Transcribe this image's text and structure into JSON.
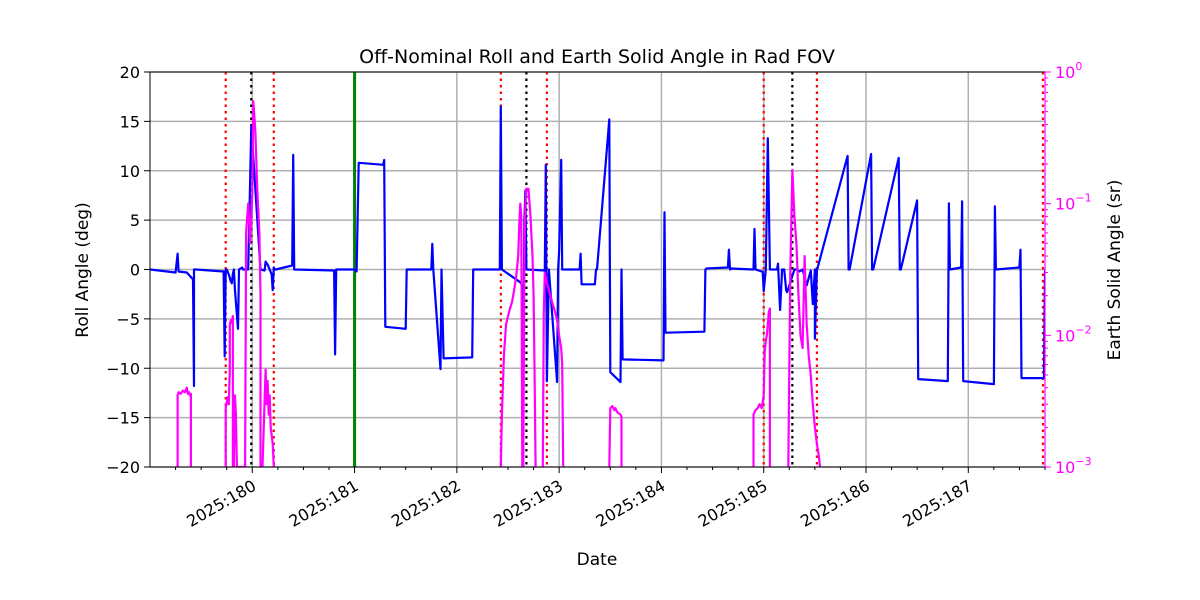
{
  "chart_data": {
    "type": "line",
    "title": "Off-Nominal Roll and Earth Solid Angle in Rad FOV",
    "xlabel": "Date",
    "ylabel": "Roll Angle (deg)",
    "ylabel_right": "Earth Solid Angle (sr)",
    "xlim": [
      179.0,
      187.75
    ],
    "ylim": [
      -20,
      20
    ],
    "ylim_right": [
      0.001,
      1
    ],
    "yscale_right": "log",
    "grid": true,
    "colors": {
      "roll": "#0000ff",
      "solid_angle": "#ff00ff",
      "red_lines": "#ff0000",
      "black_lines": "#000000",
      "green_line": "#008000",
      "right_axis": "#ff00ff"
    },
    "x_ticks": [
      {
        "value": 180,
        "label": "2025:180"
      },
      {
        "value": 181,
        "label": "2025:181"
      },
      {
        "value": 182,
        "label": "2025:182"
      },
      {
        "value": 183,
        "label": "2025:183"
      },
      {
        "value": 184,
        "label": "2025:184"
      },
      {
        "value": 185,
        "label": "2025:185"
      },
      {
        "value": 186,
        "label": "2025:186"
      },
      {
        "value": 187,
        "label": "2025:187"
      }
    ],
    "y_ticks": [
      {
        "value": 20,
        "label": "20"
      },
      {
        "value": 15,
        "label": "15"
      },
      {
        "value": 10,
        "label": "10"
      },
      {
        "value": 5,
        "label": "5"
      },
      {
        "value": 0,
        "label": "0"
      },
      {
        "value": -5,
        "label": "−5"
      },
      {
        "value": -10,
        "label": "−10"
      },
      {
        "value": -15,
        "label": "−15"
      },
      {
        "value": -20,
        "label": "−20"
      }
    ],
    "y_right_ticks": [
      {
        "value": 1,
        "base": "10",
        "exp": "0"
      },
      {
        "value": 0.1,
        "base": "10",
        "exp": "−1"
      },
      {
        "value": 0.01,
        "base": "10",
        "exp": "−2"
      },
      {
        "value": 0.001,
        "base": "10",
        "exp": "−3"
      }
    ],
    "vertical_lines": {
      "red_dotted": [
        179.74,
        180.21,
        182.43,
        182.88,
        185.0,
        185.52,
        187.73
      ],
      "black_dotted": [
        179.99,
        182.68,
        185.28
      ],
      "green_solid": [
        181.0
      ]
    },
    "series": [
      {
        "name": "Roll Angle",
        "axis": "left",
        "x": [
          179.0,
          179.25,
          179.27,
          179.28,
          179.36,
          179.42,
          179.43,
          179.43,
          179.45,
          179.72,
          179.73,
          179.74,
          179.75,
          179.77,
          179.79,
          179.8,
          179.81,
          179.82,
          179.83,
          179.86,
          179.87,
          179.9,
          179.91,
          179.94,
          179.96,
          179.99,
          180.08,
          180.12,
          180.13,
          180.15,
          180.17,
          180.19,
          180.2,
          180.21,
          180.22,
          180.23,
          180.39,
          180.4,
          180.41,
          180.8,
          180.81,
          180.82,
          180.84,
          181.0,
          181.02,
          181.04,
          181.28,
          181.29,
          181.3,
          181.5,
          181.51,
          181.52,
          181.75,
          181.76,
          181.77,
          181.84,
          181.85,
          181.87,
          182.15,
          182.16,
          182.42,
          182.43,
          182.44,
          182.62,
          182.64,
          182.65,
          182.66,
          182.67,
          182.68,
          182.86,
          182.87,
          182.88,
          182.9,
          182.98,
          182.99,
          183.0,
          183.02,
          183.03,
          183.2,
          183.21,
          183.22,
          183.35,
          183.36,
          183.37,
          183.49,
          183.5,
          183.6,
          183.61,
          183.62,
          184.02,
          184.03,
          184.04,
          184.42,
          184.43,
          184.44,
          184.65,
          184.66,
          184.67,
          184.68,
          184.9,
          184.91,
          184.92,
          184.98,
          184.99,
          185.0,
          185.02,
          185.04,
          185.06,
          185.13,
          185.14,
          185.16,
          185.18,
          185.2,
          185.22,
          185.23,
          185.3,
          185.3,
          185.32,
          185.35,
          185.38,
          185.42,
          185.46,
          185.48,
          185.5,
          185.5,
          185.52,
          185.52,
          185.82,
          185.83,
          185.84,
          186.05,
          186.06,
          186.07,
          186.32,
          186.33,
          186.34,
          186.5,
          186.51,
          186.8,
          186.81,
          186.82,
          186.93,
          186.94,
          186.95,
          187.25,
          187.26,
          187.27,
          187.5,
          187.51,
          187.52,
          187.74,
          187.75
        ],
        "y": [
          0.0,
          -0.3,
          1.6,
          -0.2,
          -0.3,
          -1.0,
          -11.8,
          0.0,
          0.0,
          -0.2,
          -8.8,
          0.0,
          0.0,
          -0.5,
          -1.2,
          -1.4,
          -0.4,
          0.0,
          -2.0,
          -6.0,
          0.0,
          0.2,
          0.0,
          0.0,
          0.0,
          14.5,
          0.0,
          -0.1,
          0.8,
          0.5,
          0.0,
          -0.5,
          -2.1,
          0.2,
          0.0,
          0.0,
          0.4,
          11.6,
          0.0,
          -0.1,
          -8.6,
          0.0,
          0.0,
          0.0,
          -0.2,
          10.8,
          10.6,
          11.1,
          -5.8,
          -6.0,
          0.0,
          0.0,
          0.0,
          2.6,
          0.0,
          -10.1,
          0.0,
          -9.0,
          -8.9,
          0.0,
          0.0,
          16.5,
          0.0,
          -1.3,
          -1.6,
          -9.0,
          5.0,
          8.0,
          0.0,
          -0.1,
          10.6,
          -11.3,
          0.0,
          -11.4,
          0.0,
          1.8,
          11.1,
          0.0,
          0.0,
          1.6,
          -1.5,
          -1.5,
          0.0,
          0.0,
          15.2,
          -10.4,
          -11.4,
          0.0,
          -9.1,
          -9.2,
          5.8,
          -6.4,
          -6.3,
          0.0,
          0.1,
          0.2,
          2.0,
          0.0,
          0.1,
          0.0,
          4.1,
          0.0,
          -0.2,
          -0.2,
          -2.2,
          0.0,
          13.3,
          0.0,
          0.0,
          0.6,
          -4.1,
          0.0,
          0.0,
          -2.1,
          -2.3,
          0.0,
          0.0,
          0.0,
          -0.2,
          0.0,
          -1.6,
          -0.1,
          -3.5,
          0.0,
          -7.0,
          0.0,
          -0.1,
          11.5,
          0.0,
          0.0,
          11.7,
          0.0,
          0.0,
          11.3,
          0.0,
          0.0,
          7.0,
          -11.1,
          -11.3,
          6.7,
          0.0,
          0.2,
          6.9,
          -11.3,
          -11.6,
          6.4,
          0.0,
          0.2,
          2.0,
          -11.0,
          -11.0,
          0.0
        ]
      },
      {
        "name": "Earth Solid Angle",
        "axis": "right",
        "segments": [
          {
            "x": [
              179.27,
              179.27,
              179.28,
              179.3,
              179.32,
              179.34,
              179.36,
              179.37,
              179.38,
              179.39,
              179.4,
              179.4
            ],
            "y": [
              0.001,
              0.0035,
              0.0037,
              0.0036,
              0.0038,
              0.0037,
              0.004,
              0.0036,
              0.0037,
              0.0035,
              0.0036,
              0.001
            ]
          },
          {
            "x": [
              179.74,
              179.74,
              179.76,
              179.77,
              179.78,
              179.78,
              179.79,
              179.8,
              179.81,
              179.81,
              179.82,
              179.83,
              179.84,
              179.85,
              179.86,
              179.87,
              179.88,
              179.9,
              179.91,
              179.92,
              179.93,
              179.94,
              179.96,
              179.98,
              180.0,
              180.01,
              180.03,
              180.05,
              180.07,
              180.08,
              180.08
            ],
            "y": [
              0.001,
              0.0028,
              0.0034,
              0.003,
              0.0055,
              0.012,
              0.013,
              0.0125,
              0.014,
              0.001,
              0.001,
              0.0035,
              0.0025,
              0.001,
              0.001,
              0.001,
              0.001,
              0.001,
              0.001,
              0.001,
              0.001,
              0.06,
              0.1,
              0.05,
              0.12,
              0.6,
              0.35,
              0.12,
              0.06,
              0.02,
              0.001
            ]
          },
          {
            "x": [
              180.1,
              180.12,
              180.13,
              180.14,
              180.15,
              180.16,
              180.17,
              180.18,
              180.2,
              180.21
            ],
            "y": [
              0.001,
              0.0032,
              0.0055,
              0.003,
              0.0045,
              0.0025,
              0.0035,
              0.002,
              0.0015,
              0.001
            ]
          },
          {
            "x": [
              182.43,
              182.44,
              182.46,
              182.48,
              182.5,
              182.52,
              182.54,
              182.56,
              182.58,
              182.6,
              182.61,
              182.62,
              182.63,
              182.64
            ],
            "y": [
              0.001,
              0.0025,
              0.007,
              0.012,
              0.014,
              0.016,
              0.018,
              0.022,
              0.028,
              0.04,
              0.07,
              0.1,
              0.08,
              0.001
            ]
          },
          {
            "x": [
              182.65,
              182.66,
              182.67,
              182.68,
              182.7,
              182.72,
              182.74,
              182.75,
              182.76,
              182.77
            ],
            "y": [
              0.001,
              0.04,
              0.1,
              0.13,
              0.13,
              0.08,
              0.04,
              0.02,
              0.005,
              0.001
            ]
          },
          {
            "x": [
              182.84,
              182.85,
              182.86,
              182.88,
              182.9,
              182.93,
              182.96,
              182.98,
              183.0,
              183.02,
              183.03,
              183.04
            ],
            "y": [
              0.001,
              0.015,
              0.03,
              0.025,
              0.022,
              0.018,
              0.015,
              0.013,
              0.01,
              0.008,
              0.006,
              0.001
            ]
          },
          {
            "x": [
              183.49,
              183.5,
              183.52,
              183.54,
              183.55,
              183.57,
              183.6,
              183.61,
              183.61
            ],
            "y": [
              0.001,
              0.0028,
              0.0029,
              0.0027,
              0.0028,
              0.0026,
              0.0025,
              0.0024,
              0.001
            ]
          },
          {
            "x": [
              184.9,
              184.9,
              184.92,
              184.94,
              184.96,
              184.98,
              185.0,
              185.01,
              185.02,
              185.03,
              185.04,
              185.05,
              185.06,
              185.06
            ],
            "y": [
              0.001,
              0.0025,
              0.0027,
              0.0028,
              0.003,
              0.0028,
              0.0035,
              0.0075,
              0.009,
              0.01,
              0.012,
              0.015,
              0.016,
              0.001
            ]
          },
          {
            "x": [
              185.24,
              185.26,
              185.28,
              185.3,
              185.32,
              185.34,
              185.36,
              185.38,
              185.4,
              185.42,
              185.44,
              185.46,
              185.48,
              185.5,
              185.52,
              185.54,
              185.55
            ],
            "y": [
              0.001,
              0.03,
              0.18,
              0.08,
              0.05,
              0.02,
              0.01,
              0.008,
              0.04,
              0.012,
              0.007,
              0.005,
              0.003,
              0.002,
              0.0015,
              0.0012,
              0.001
            ]
          }
        ]
      }
    ]
  }
}
